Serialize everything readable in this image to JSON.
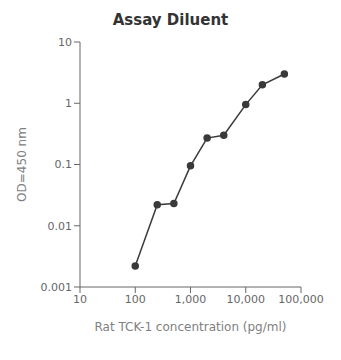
{
  "chart_data": {
    "type": "line",
    "title": "Assay Diluent",
    "xlabel": "Rat TCK-1 concentration (pg/ml)",
    "ylabel": "OD=450 nm",
    "x": [
      100,
      250,
      500,
      1000,
      2000,
      4000,
      10000,
      20000,
      50000
    ],
    "values": [
      0.0022,
      0.022,
      0.023,
      0.095,
      0.27,
      0.3,
      0.95,
      2.0,
      3.0
    ],
    "color": "#3a3a3a",
    "marker": "circle",
    "log": true,
    "grid": false,
    "xlim": [
      10,
      100000
    ],
    "ylim": [
      0.001,
      10
    ],
    "xticks": [
      10,
      100,
      {
        "value": 1000,
        "label": "1,000"
      },
      {
        "value": 10000,
        "label": "10,000"
      },
      {
        "value": 100000,
        "label": "100,000"
      }
    ],
    "yticks": [
      0.001,
      0.01,
      0.1,
      1,
      10
    ]
  }
}
